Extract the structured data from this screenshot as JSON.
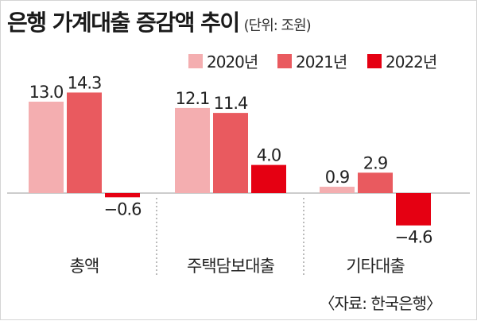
{
  "header": {
    "title": "은행 가계대출 증감액 추이",
    "unit": "(단위: 조원)"
  },
  "source": "〈자료: 한국은행〉",
  "colors": {
    "2020년": "#f4aeb0",
    "2021년": "#e95a5f",
    "2022년": "#e50012",
    "value_label": "#222222",
    "baseline": "#999999",
    "separator": "#777777"
  },
  "chart_data": {
    "type": "bar",
    "categories": [
      "총액",
      "주택담보대출",
      "기타대출"
    ],
    "series": [
      {
        "name": "2020년",
        "values": [
          13.0,
          12.1,
          0.9
        ]
      },
      {
        "name": "2021년",
        "values": [
          14.3,
          11.4,
          2.9
        ]
      },
      {
        "name": "2022년",
        "values": [
          -0.6,
          4.0,
          -4.6
        ]
      }
    ],
    "value_labels": [
      [
        "13.0",
        "12.1",
        "0.9"
      ],
      [
        "14.3",
        "11.4",
        "2.9"
      ],
      [
        "−0.6",
        "4.0",
        "−4.6"
      ]
    ],
    "legend_position": "top-right",
    "grid": false
  }
}
